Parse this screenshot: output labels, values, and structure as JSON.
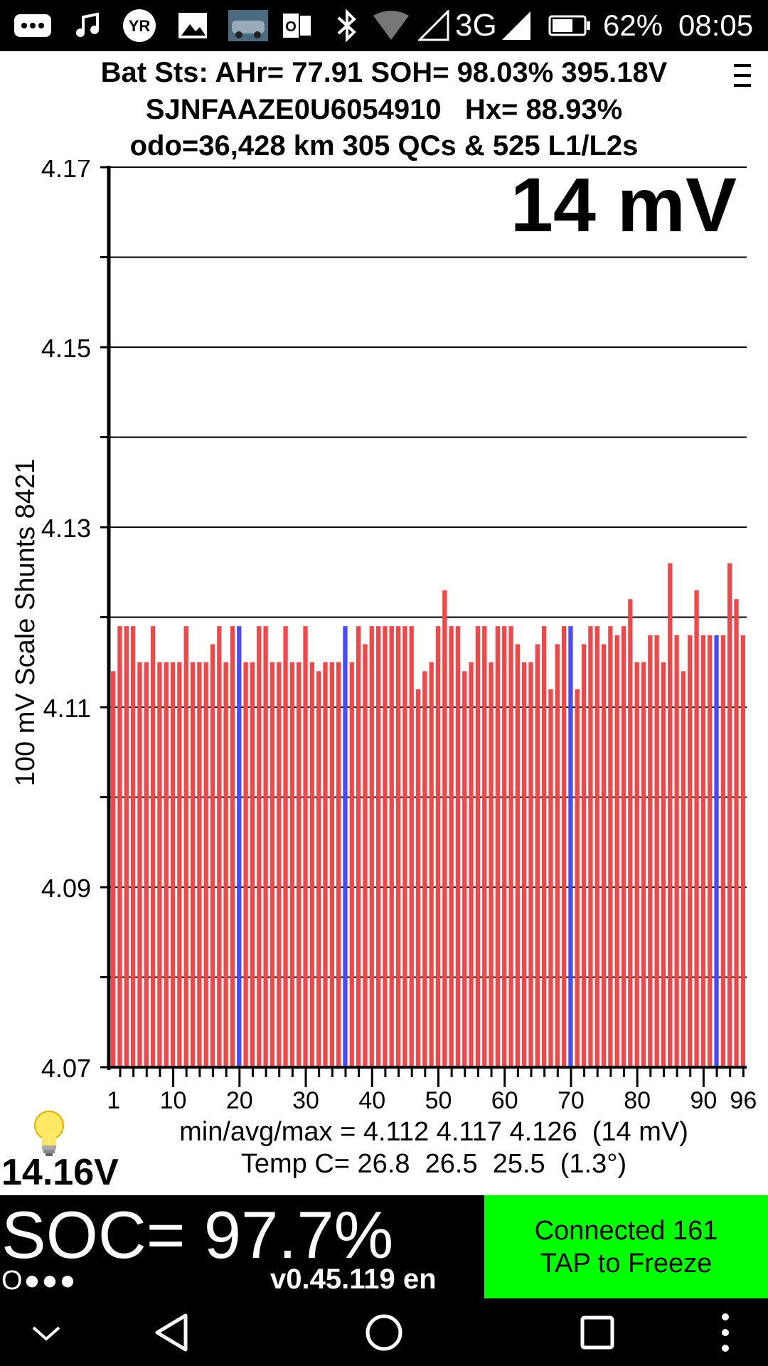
{
  "status_bar": {
    "icons": [
      "more-icon",
      "music-icon",
      "yr-weather-icon",
      "gallery-icon",
      "car-thumbnail-icon",
      "outlook-icon",
      "bluetooth-icon",
      "wifi-icon",
      "cell-signal-icon",
      "battery-icon"
    ],
    "network": "3G",
    "battery_pct": "62%",
    "time": "08:05"
  },
  "header": {
    "line1": "Bat Sts: AHr= 77.91 SOH= 98.03% 395.18V",
    "line2": "SJNFAAZE0U6054910   Hx= 88.93%",
    "line3": "odo=36,428 km 305 QCs & 525 L1/L2s"
  },
  "chart_data": {
    "type": "bar",
    "y_axis_title": "100 mV Scale  Shunts 8421",
    "spread_label": "14 mV",
    "ylim": [
      4.07,
      4.17
    ],
    "y_tick_labels": [
      "4.17",
      "4.15",
      "4.13",
      "4.11",
      "4.09",
      "4.07"
    ],
    "x_tick_labels": [
      "1",
      "10",
      "20",
      "30",
      "40",
      "50",
      "60",
      "70",
      "80",
      "90",
      "96"
    ],
    "x_tick_values": [
      1,
      10,
      20,
      30,
      40,
      50,
      60,
      70,
      80,
      90,
      96
    ],
    "grid": true,
    "colors": {
      "normal": "#f04848",
      "shunted": "#4a4aff"
    },
    "shunted_cells": [
      20,
      36,
      70,
      92
    ],
    "cells": [
      1,
      2,
      3,
      4,
      5,
      6,
      7,
      8,
      9,
      10,
      11,
      12,
      13,
      14,
      15,
      16,
      17,
      18,
      19,
      20,
      21,
      22,
      23,
      24,
      25,
      26,
      27,
      28,
      29,
      30,
      31,
      32,
      33,
      34,
      35,
      36,
      37,
      38,
      39,
      40,
      41,
      42,
      43,
      44,
      45,
      46,
      47,
      48,
      49,
      50,
      51,
      52,
      53,
      54,
      55,
      56,
      57,
      58,
      59,
      60,
      61,
      62,
      63,
      64,
      65,
      66,
      67,
      68,
      69,
      70,
      71,
      72,
      73,
      74,
      75,
      76,
      77,
      78,
      79,
      80,
      81,
      82,
      83,
      84,
      85,
      86,
      87,
      88,
      89,
      90,
      91,
      92,
      93,
      94,
      95,
      96
    ],
    "values": [
      4.114,
      4.119,
      4.119,
      4.119,
      4.115,
      4.115,
      4.119,
      4.115,
      4.115,
      4.115,
      4.115,
      4.119,
      4.115,
      4.115,
      4.115,
      4.117,
      4.119,
      4.115,
      4.119,
      4.119,
      4.115,
      4.115,
      4.119,
      4.119,
      4.115,
      4.115,
      4.119,
      4.115,
      4.115,
      4.119,
      4.115,
      4.114,
      4.115,
      4.115,
      4.115,
      4.119,
      4.115,
      4.119,
      4.117,
      4.119,
      4.119,
      4.119,
      4.119,
      4.119,
      4.119,
      4.119,
      4.112,
      4.114,
      4.115,
      4.119,
      4.123,
      4.119,
      4.119,
      4.114,
      4.115,
      4.119,
      4.119,
      4.115,
      4.119,
      4.119,
      4.119,
      4.117,
      4.115,
      4.115,
      4.117,
      4.119,
      4.112,
      4.117,
      4.119,
      4.119,
      4.112,
      4.117,
      4.119,
      4.119,
      4.117,
      4.119,
      4.118,
      4.119,
      4.122,
      4.115,
      4.115,
      4.118,
      4.118,
      4.115,
      4.126,
      4.118,
      4.114,
      4.118,
      4.123,
      4.118,
      4.118,
      4.118,
      4.118,
      4.126,
      4.122,
      4.118
    ]
  },
  "stats": {
    "minavgmax": "min/avg/max = 4.112 4.117 4.126  (14 mV)",
    "temp": "Temp C= 26.8  26.5  25.5  (1.3°)"
  },
  "voltage": "14.16V",
  "soc": "SOC= 97.7%",
  "dots": "O●●●",
  "version": "v0.45.119 en",
  "connect": {
    "line1": "Connected 161",
    "line2": "TAP to Freeze"
  },
  "nav": [
    "collapse-icon",
    "back-icon",
    "home-icon",
    "recents-icon",
    "overflow-menu-icon"
  ]
}
